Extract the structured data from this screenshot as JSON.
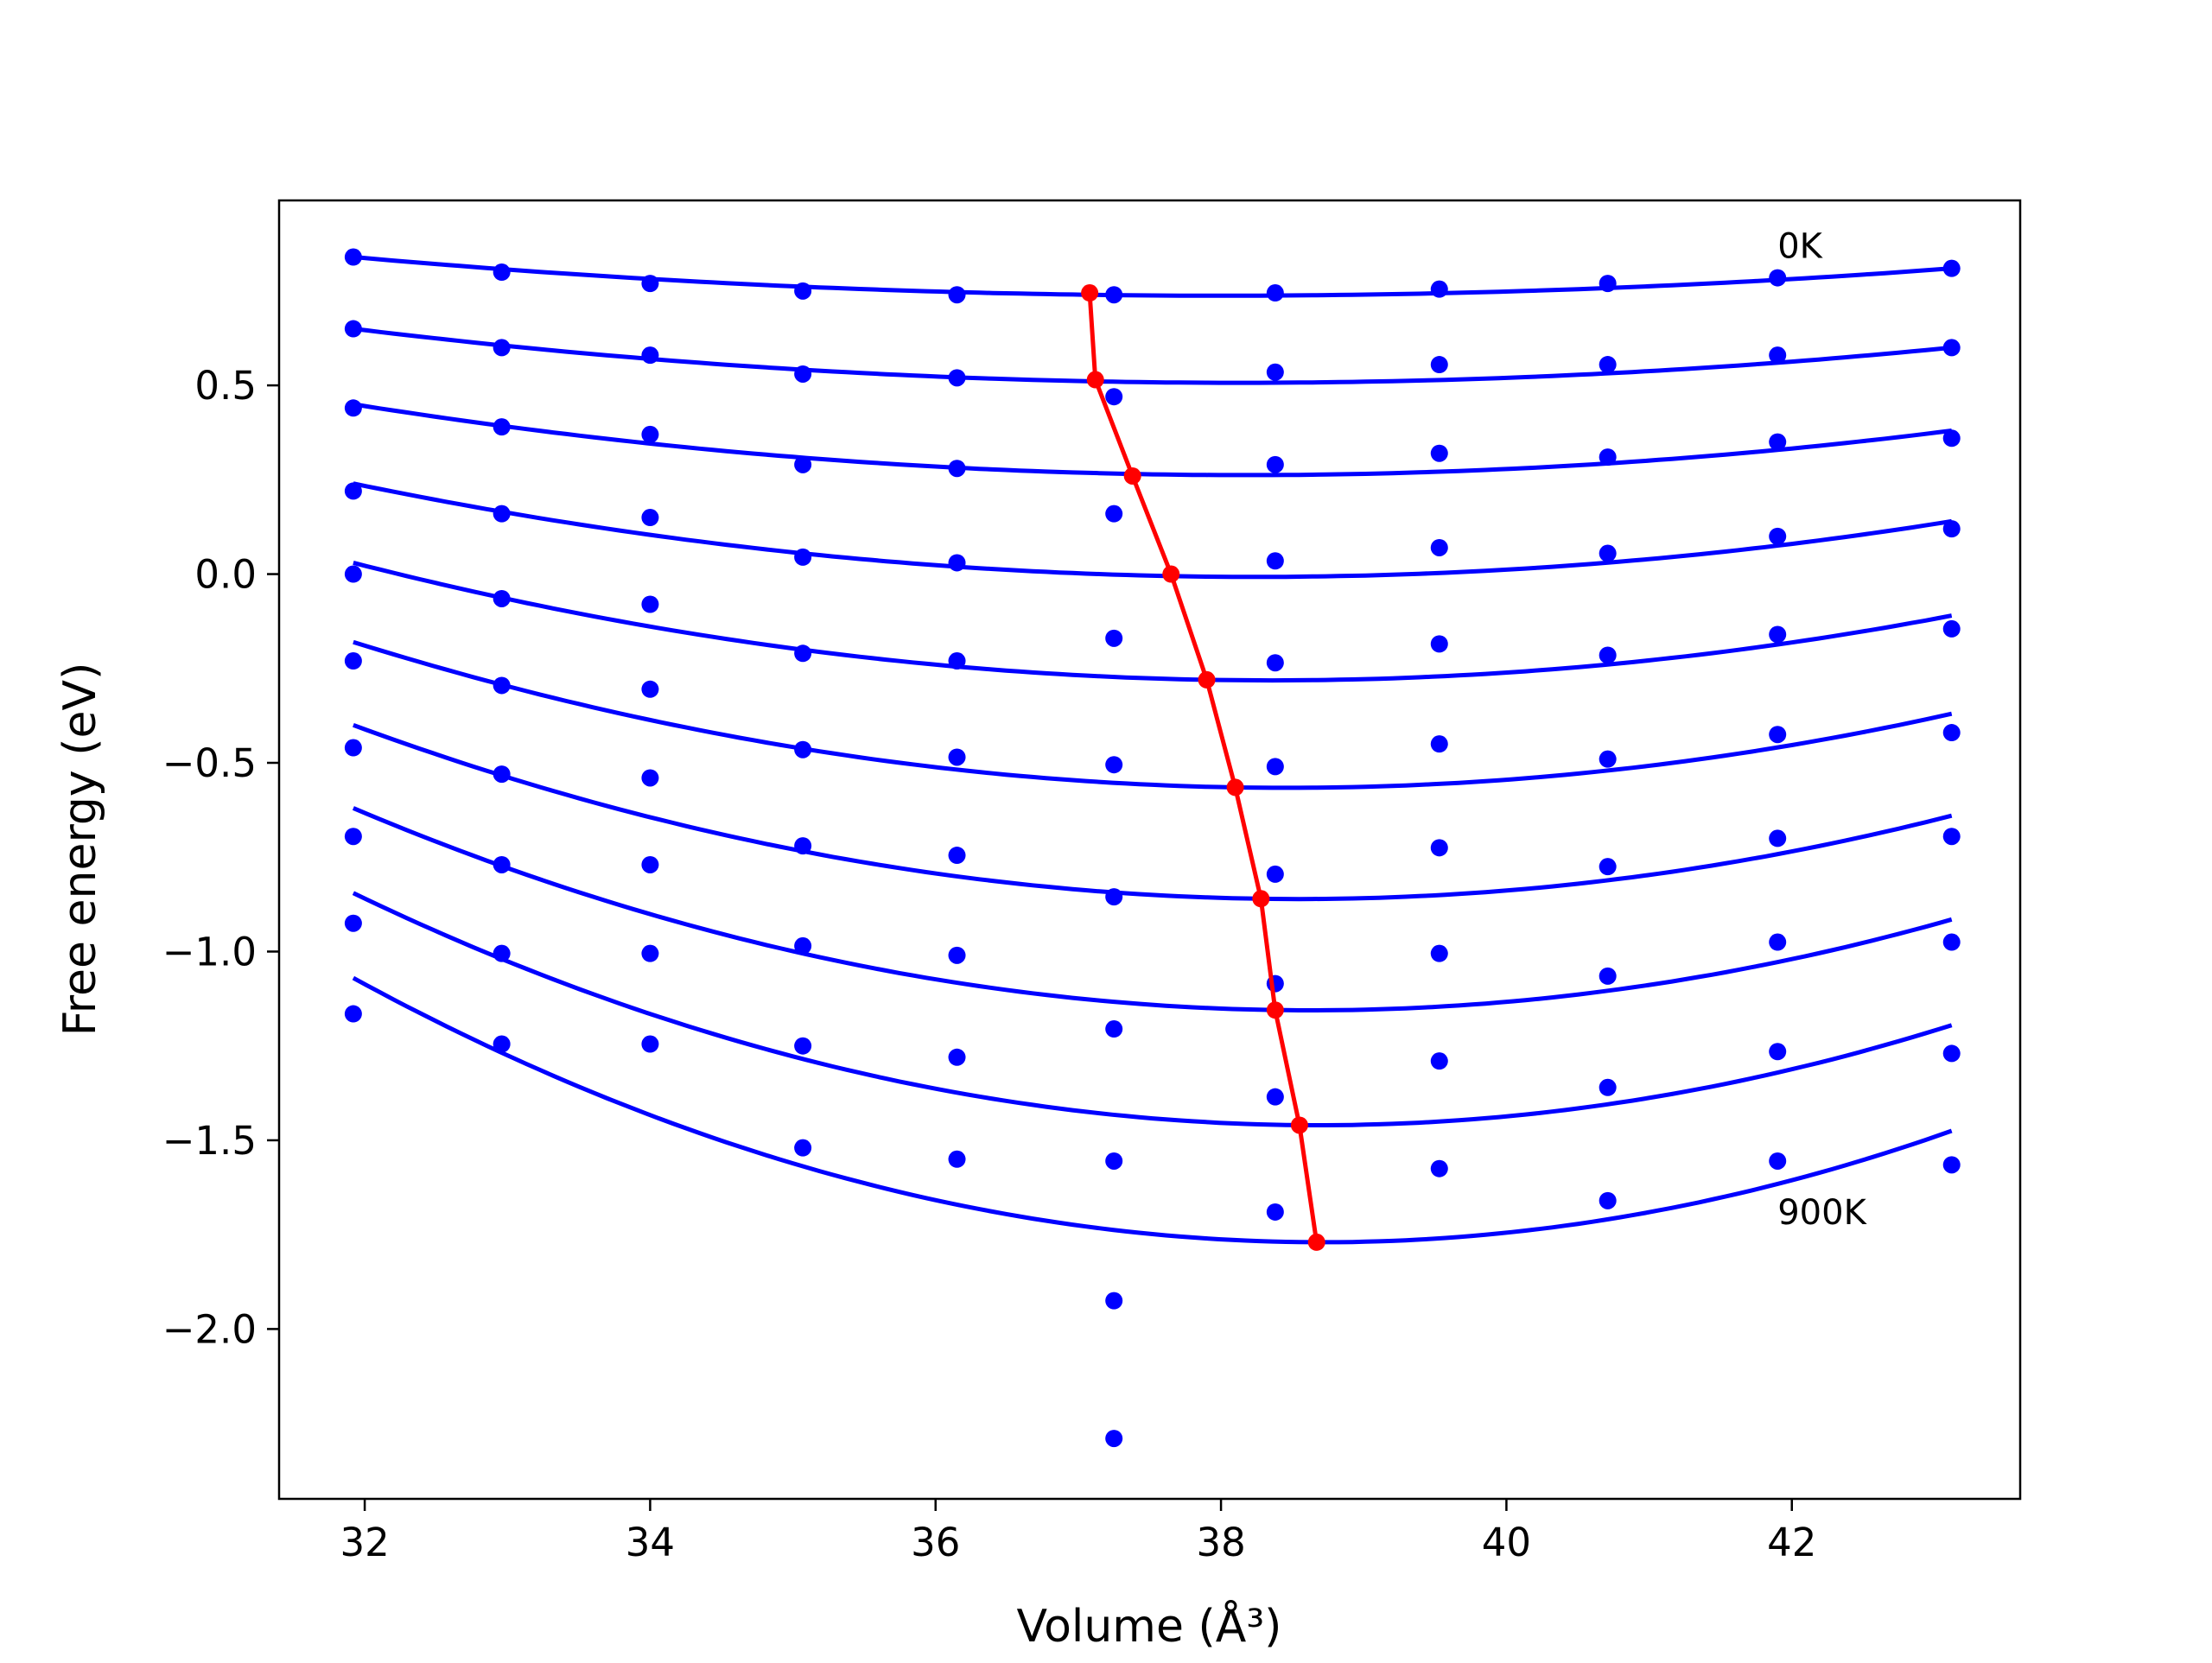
{
  "chart_data": {
    "type": "scatter",
    "xlabel": "Volume (Å³)",
    "ylabel": "Free energy (eV)",
    "xlim": [
      31.4,
      43.6
    ],
    "ylim": [
      -2.45,
      0.99
    ],
    "grid": false,
    "legend": "none",
    "xticks": [
      32,
      34,
      36,
      38,
      40,
      42
    ],
    "xtick_labels": [
      "32",
      "34",
      "36",
      "38",
      "40",
      "42"
    ],
    "yticks": [
      0.5,
      0.0,
      -0.5,
      -1.0,
      -1.5,
      -2.0
    ],
    "ytick_labels": [
      "0.5",
      "0.0",
      "−0.5",
      "−1.0",
      "−1.5",
      "−2.0"
    ],
    "annotations": [
      {
        "text": "0K",
        "x": 41.9,
        "y": 0.87
      },
      {
        "text": "900K",
        "x": 41.9,
        "y": -1.69
      }
    ],
    "colors": {
      "data": "#0000ff",
      "minimum": "#ff0000"
    },
    "volumes": [
      31.92,
      32.96,
      34.0,
      35.07,
      36.15,
      37.25,
      38.38,
      39.53,
      40.71,
      41.9,
      43.12
    ],
    "data_points": [
      [
        0.84,
        0.8,
        0.77,
        0.75,
        0.74,
        0.74,
        0.745,
        0.755,
        0.77,
        0.785,
        0.81
      ],
      [
        0.65,
        0.6,
        0.58,
        0.53,
        0.52,
        0.47,
        0.535,
        0.555,
        0.555,
        0.58,
        0.6
      ],
      [
        0.44,
        0.39,
        0.37,
        0.29,
        0.28,
        0.16,
        0.29,
        0.32,
        0.31,
        0.35,
        0.36
      ],
      [
        0.22,
        0.16,
        0.15,
        0.045,
        0.03,
        -0.17,
        0.035,
        0.07,
        0.055,
        0.1,
        0.12
      ],
      [
        0.0,
        -0.065,
        -0.08,
        -0.21,
        -0.23,
        -0.505,
        -0.235,
        -0.185,
        -0.215,
        -0.16,
        -0.145
      ],
      [
        -0.23,
        -0.295,
        -0.305,
        -0.465,
        -0.485,
        -0.855,
        -0.51,
        -0.45,
        -0.49,
        -0.425,
        -0.42
      ],
      [
        -0.46,
        -0.53,
        -0.54,
        -0.72,
        -0.745,
        -1.205,
        -0.795,
        -0.725,
        -0.775,
        -0.7,
        -0.695
      ],
      [
        -0.695,
        -0.77,
        -0.77,
        -0.985,
        -1.01,
        -1.555,
        -1.085,
        -1.005,
        -1.065,
        -0.975,
        -0.975
      ],
      [
        -0.925,
        -1.005,
        -1.005,
        -1.25,
        -1.28,
        -1.925,
        -1.385,
        -1.29,
        -1.36,
        -1.265,
        -1.27
      ],
      [
        -1.165,
        -1.245,
        -1.245,
        -1.52,
        -1.55,
        -2.29,
        -1.69,
        -1.575,
        -1.66,
        -1.555,
        -1.565
      ]
    ],
    "fit_curves": [
      {
        "x": [
          31.92,
          37.08,
          43.12
        ],
        "y": [
          0.84,
          0.74,
          0.81
        ]
      },
      {
        "x": [
          31.92,
          37.2,
          43.12
        ],
        "y": [
          0.65,
          0.51,
          0.6
        ]
      },
      {
        "x": [
          31.92,
          37.42,
          43.12
        ],
        "y": [
          0.45,
          0.265,
          0.38
        ]
      },
      {
        "x": [
          31.92,
          37.62,
          43.12
        ],
        "y": [
          0.24,
          -0.005,
          0.14
        ]
      },
      {
        "x": [
          31.92,
          37.9,
          43.12
        ],
        "y": [
          0.03,
          -0.28,
          -0.11
        ]
      },
      {
        "x": [
          31.92,
          38.1,
          43.12
        ],
        "y": [
          -0.18,
          -0.565,
          -0.37
        ]
      },
      {
        "x": [
          31.92,
          38.26,
          43.12
        ],
        "y": [
          -0.4,
          -0.86,
          -0.64
        ]
      },
      {
        "x": [
          31.92,
          38.38,
          43.12
        ],
        "y": [
          -0.62,
          -1.155,
          -0.915
        ]
      },
      {
        "x": [
          31.92,
          38.6,
          43.12
        ],
        "y": [
          -0.845,
          -1.46,
          -1.195
        ]
      },
      {
        "x": [
          31.92,
          38.8,
          43.12
        ],
        "y": [
          -1.07,
          -1.77,
          -1.475
        ]
      }
    ],
    "minimum_line": {
      "x": [
        37.08,
        37.12,
        37.38,
        37.65,
        37.9,
        38.1,
        38.28,
        38.38,
        38.55,
        38.67
      ],
      "y": [
        0.745,
        0.515,
        0.26,
        0.0,
        -0.28,
        -0.565,
        -0.86,
        -1.155,
        -1.46,
        -1.77
      ]
    }
  }
}
